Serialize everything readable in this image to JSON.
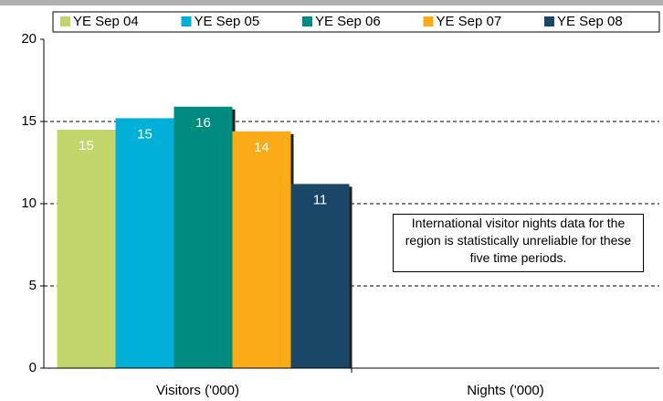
{
  "chart_data": {
    "type": "bar",
    "categories": [
      "Visitors ('000)",
      "Nights ('000)"
    ],
    "series": [
      {
        "name": "YE Sep 04",
        "color": "#c3d66b",
        "values": [
          14.5,
          null
        ],
        "value_labels": [
          "15",
          null
        ]
      },
      {
        "name": "YE Sep 05",
        "color": "#00b0d8",
        "values": [
          15.2,
          null
        ],
        "value_labels": [
          "15",
          null
        ]
      },
      {
        "name": "YE Sep 06",
        "color": "#008b80",
        "values": [
          15.9,
          null
        ],
        "value_labels": [
          "16",
          null
        ]
      },
      {
        "name": "YE Sep 07",
        "color": "#fbab18",
        "values": [
          14.4,
          null
        ],
        "value_labels": [
          "14",
          null
        ]
      },
      {
        "name": "YE Sep 08",
        "color": "#1a4668",
        "values": [
          11.2,
          null
        ],
        "value_labels": [
          "11",
          null
        ]
      }
    ],
    "ylim": [
      0,
      20
    ],
    "yticks": [
      0,
      5,
      10,
      15,
      20
    ],
    "grid": true,
    "annotation": "International visitor nights data for the region is statistically unreliable for these five time periods."
  }
}
